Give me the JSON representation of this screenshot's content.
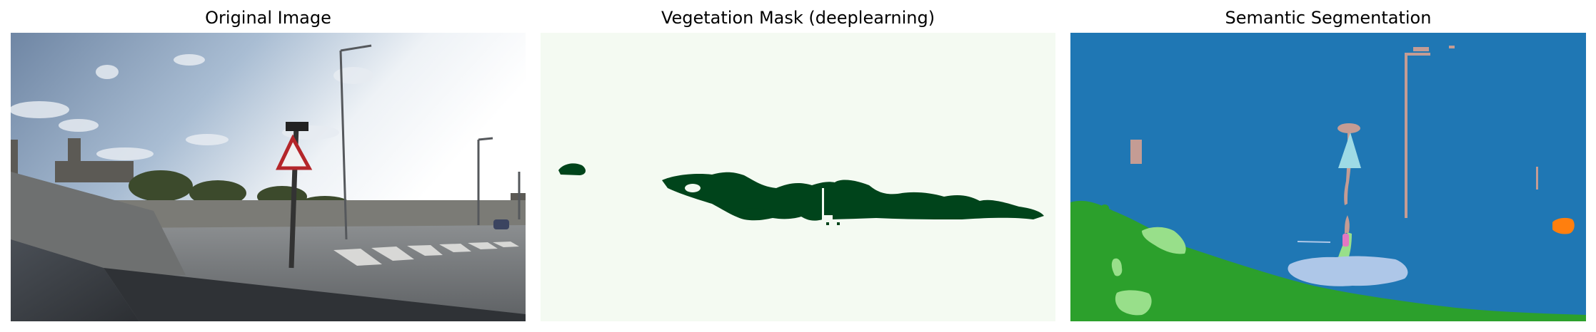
{
  "panels": {
    "original": {
      "title": "Original Image"
    },
    "mask": {
      "title": "Vegetation Mask (deeplearning)"
    },
    "segmentation": {
      "title": "Semantic Segmentation"
    }
  },
  "colors": {
    "mask_background": "#f4faf2",
    "mask_vegetation": "#00441b",
    "seg_sky": "#1f77b4",
    "seg_vegetation": "#2ca02c",
    "seg_terrain": "#98df8a",
    "seg_road": "#aec7e8",
    "seg_pole": "#c49c94",
    "seg_sign": "#9edae5",
    "seg_person": "#e377c2",
    "seg_car": "#ff7f0e"
  }
}
